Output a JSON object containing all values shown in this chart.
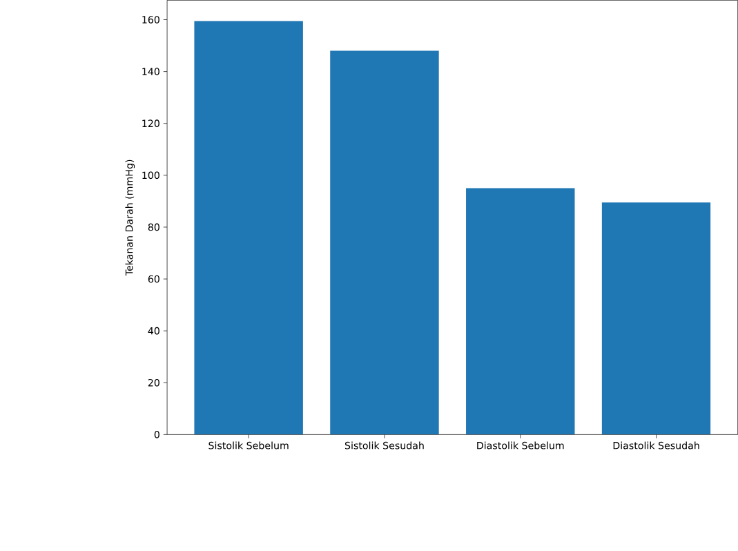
{
  "chart_data": {
    "type": "bar",
    "ylabel": "Tekanan Darah (mmHg)",
    "categories": [
      "Sistolik Sebelum",
      "Sistolik Sesudah",
      "Diastolik Sebelum",
      "Diastolik Sesudah"
    ],
    "values": [
      159.5,
      148,
      95,
      89.5
    ],
    "color": "#1f77b4",
    "ylim": [
      0,
      167.5
    ],
    "yticks": [
      0,
      20,
      40,
      60,
      80,
      100,
      120,
      140,
      160
    ]
  }
}
